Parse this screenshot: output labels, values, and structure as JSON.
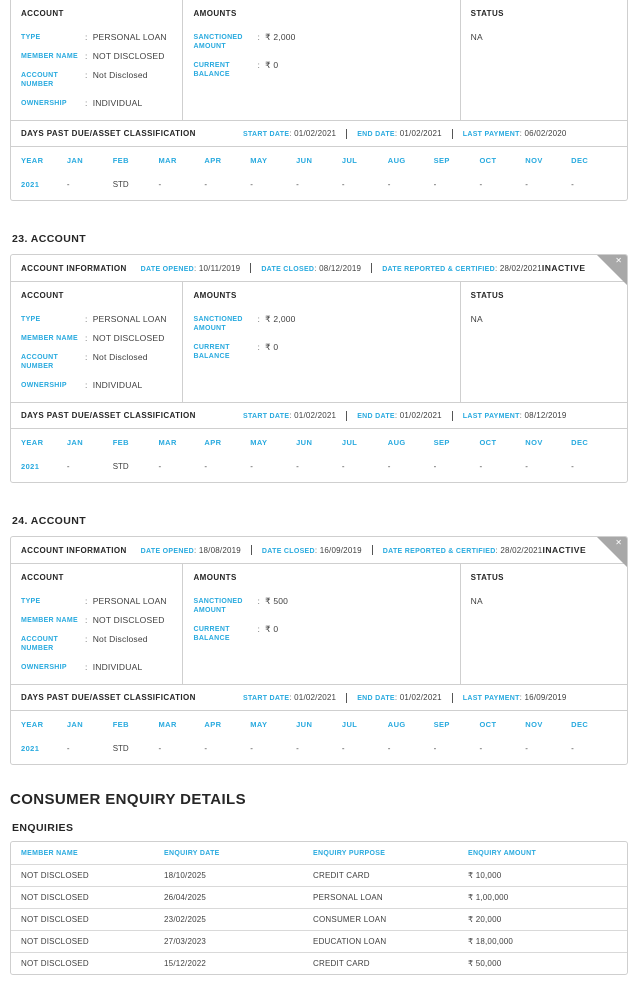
{
  "colors": {
    "accent": "#29AADF",
    "text_dark": "#3F3F3F",
    "heading_black": "#262626",
    "border_gray": "#CFCFCF",
    "ribbon_gray": "#A8A8A8"
  },
  "labels": {
    "account_information": "ACCOUNT INFORMATION",
    "date_opened": "DATE OPENED",
    "date_closed": "DATE CLOSED",
    "date_reported_certified": "DATE REPORTED & CERTIFIED",
    "account": "ACCOUNT",
    "amounts": "AMOUNTS",
    "status": "STATUS",
    "type": "TYPE",
    "member_name": "MEMBER NAME",
    "account_number": "ACCOUNT NUMBER",
    "ownership": "OWNERSHIP",
    "sanctioned_amount": "SANCTIONED AMOUNT",
    "current_balance": "CURRENT BALANCE",
    "dpd_title": "DAYS PAST DUE/ASSET CLASSIFICATION",
    "start_date": "START DATE",
    "end_date": "END DATE",
    "last_payment": "LAST PAYMENT",
    "year": "YEAR",
    "close_icon": "✕"
  },
  "months": [
    "JAN",
    "FEB",
    "MAR",
    "APR",
    "MAY",
    "JUN",
    "JUL",
    "AUG",
    "SEP",
    "OCT",
    "NOV",
    "DEC"
  ],
  "accounts": [
    {
      "type": "PERSONAL LOAN",
      "member_name": "NOT DISCLOSED",
      "account_number": "Not Disclosed",
      "ownership": "INDIVIDUAL",
      "sanctioned_amount": "₹ 2,000",
      "current_balance": "₹ 0",
      "status": "NA",
      "start_date": "01/02/2021",
      "end_date": "01/02/2021",
      "last_payment": "06/02/2020",
      "year": "2021",
      "dpd": [
        "-",
        "STD",
        "-",
        "-",
        "-",
        "-",
        "-",
        "-",
        "-",
        "-",
        "-",
        "-"
      ]
    },
    {
      "heading": "23. ACCOUNT",
      "date_opened": "10/11/2019",
      "date_closed": "08/12/2019",
      "date_reported": "28/02/2021",
      "badge": "INACTIVE",
      "type": "PERSONAL LOAN",
      "member_name": "NOT DISCLOSED",
      "account_number": "Not Disclosed",
      "ownership": "INDIVIDUAL",
      "sanctioned_amount": "₹ 2,000",
      "current_balance": "₹ 0",
      "status": "NA",
      "start_date": "01/02/2021",
      "end_date": "01/02/2021",
      "last_payment": "08/12/2019",
      "year": "2021",
      "dpd": [
        "-",
        "STD",
        "-",
        "-",
        "-",
        "-",
        "-",
        "-",
        "-",
        "-",
        "-",
        "-"
      ]
    },
    {
      "heading": "24. ACCOUNT",
      "date_opened": "18/08/2019",
      "date_closed": "16/09/2019",
      "date_reported": "28/02/2021",
      "badge": "INACTIVE",
      "type": "PERSONAL LOAN",
      "member_name": "NOT DISCLOSED",
      "account_number": "Not Disclosed",
      "ownership": "INDIVIDUAL",
      "sanctioned_amount": "₹ 500",
      "current_balance": "₹ 0",
      "status": "NA",
      "start_date": "01/02/2021",
      "end_date": "01/02/2021",
      "last_payment": "16/09/2019",
      "year": "2021",
      "dpd": [
        "-",
        "STD",
        "-",
        "-",
        "-",
        "-",
        "-",
        "-",
        "-",
        "-",
        "-",
        "-"
      ]
    }
  ],
  "enquiry_section": {
    "title": "CONSUMER ENQUIRY DETAILS",
    "subtitle": "ENQUIRIES",
    "headers": [
      "MEMBER NAME",
      "ENQUIRY DATE",
      "ENQUIRY PURPOSE",
      "ENQUIRY AMOUNT"
    ],
    "rows": [
      [
        "NOT DISCLOSED",
        "18/10/2025",
        "CREDIT CARD",
        "₹ 10,000"
      ],
      [
        "NOT DISCLOSED",
        "26/04/2025",
        "PERSONAL LOAN",
        "₹ 1,00,000"
      ],
      [
        "NOT DISCLOSED",
        "23/02/2025",
        "CONSUMER LOAN",
        "₹ 20,000"
      ],
      [
        "NOT DISCLOSED",
        "27/03/2023",
        "EDUCATION LOAN",
        "₹ 18,00,000"
      ],
      [
        "NOT DISCLOSED",
        "15/12/2022",
        "CREDIT CARD",
        "₹ 50,000"
      ]
    ]
  }
}
